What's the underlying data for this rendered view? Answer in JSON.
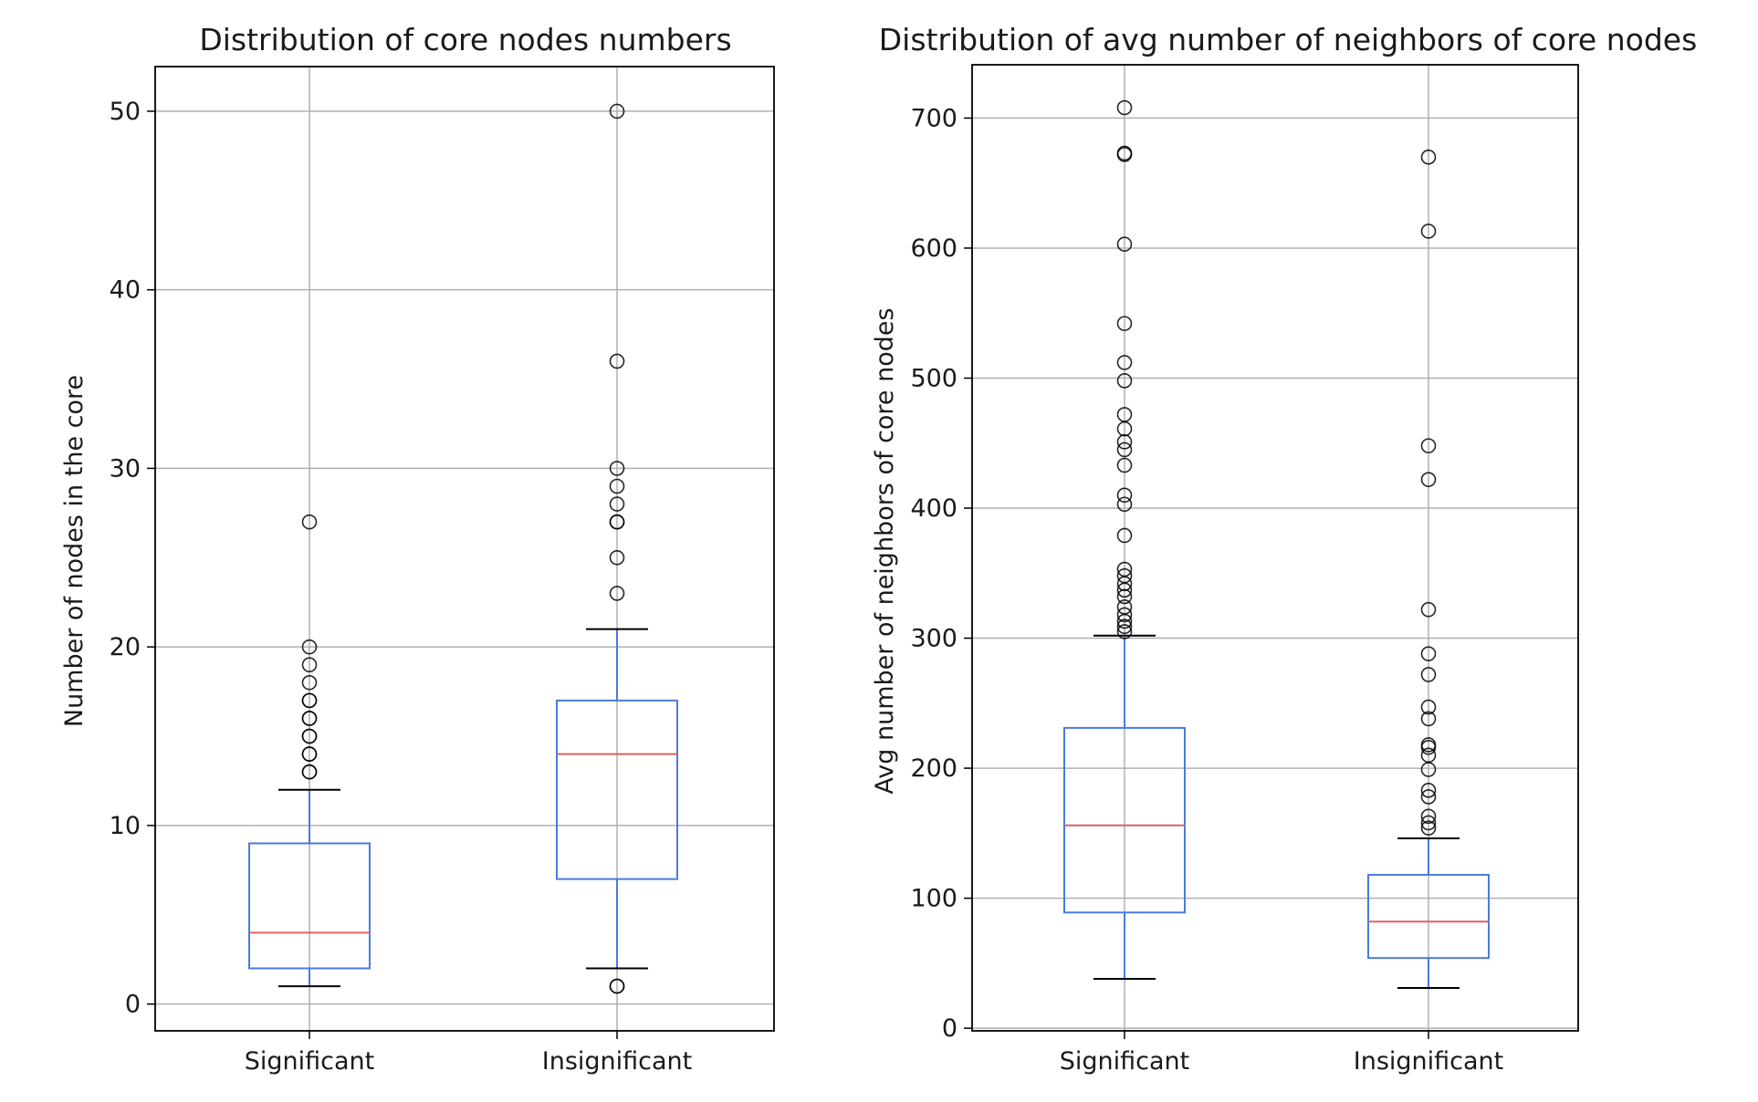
{
  "colors": {
    "box": "#4a7be0",
    "median": "#e06060",
    "grid": "#b0b0b0",
    "axis": "#000000",
    "flier": "#000000"
  },
  "chart_data": [
    {
      "type": "boxplot",
      "title": "Distribution of core nodes numbers",
      "xlabel": "",
      "ylabel": "Number of nodes in the core",
      "categories": [
        "Significant",
        "Insignificant"
      ],
      "ylim": [
        -1.5,
        52.5
      ],
      "yticks": [
        0,
        10,
        20,
        30,
        40,
        50
      ],
      "grid": true,
      "boxes": [
        {
          "label": "Significant",
          "whisker_low": 1,
          "q1": 2,
          "median": 4,
          "q3": 9,
          "whisker_high": 12,
          "fliers": [
            13,
            13,
            14,
            14,
            15,
            15,
            16,
            16,
            17,
            17,
            18,
            19,
            20,
            27
          ]
        },
        {
          "label": "Insignificant",
          "whisker_low": 2,
          "q1": 7,
          "median": 14,
          "q3": 17,
          "whisker_high": 21,
          "fliers": [
            1,
            1,
            23,
            25,
            27,
            27,
            28,
            29,
            30,
            36,
            50
          ]
        }
      ]
    },
    {
      "type": "boxplot",
      "title": "Distribution of avg number of neighbors of core nodes",
      "xlabel": "",
      "ylabel": "Avg number of neighbors of core nodes",
      "categories": [
        "Significant",
        "Insignificant"
      ],
      "ylim": [
        -2,
        741
      ],
      "yticks": [
        0,
        100,
        200,
        300,
        400,
        500,
        600,
        700
      ],
      "grid": true,
      "boxes": [
        {
          "label": "Significant",
          "whisker_low": 38,
          "q1": 89,
          "median": 156,
          "q3": 231,
          "whisker_high": 302,
          "fliers": [
            305,
            309,
            313,
            318,
            324,
            332,
            337,
            342,
            348,
            353,
            379,
            403,
            410,
            433,
            445,
            451,
            461,
            472,
            498,
            512,
            542,
            603,
            672,
            673,
            708
          ]
        },
        {
          "label": "Insignificant",
          "whisker_low": 31,
          "q1": 54,
          "median": 82,
          "q3": 118,
          "whisker_high": 146,
          "fliers": [
            154,
            158,
            163,
            178,
            183,
            199,
            210,
            216,
            218,
            238,
            247,
            272,
            288,
            322,
            422,
            448,
            613,
            670
          ]
        }
      ]
    }
  ]
}
